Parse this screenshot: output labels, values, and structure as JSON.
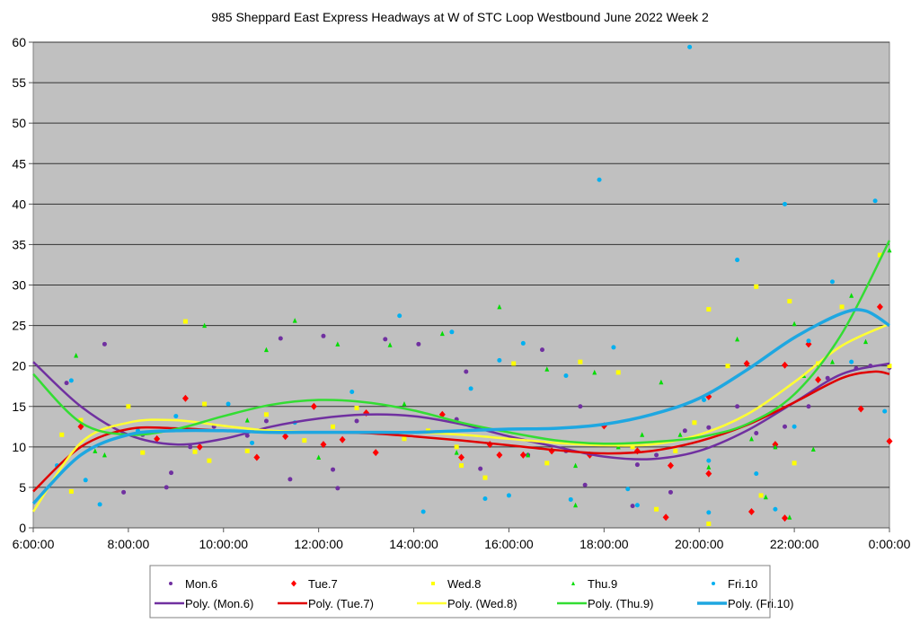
{
  "chart_data": {
    "type": "scatter",
    "title": "985 Sheppard East Express Headways at W of STC Loop Westbound June 2022  Week 2",
    "xlabel": "",
    "ylabel": "",
    "xlim": [
      6,
      24
    ],
    "ylim": [
      0,
      60
    ],
    "x_unit": "hour of day",
    "x_ticks": [
      6,
      8,
      10,
      12,
      14,
      16,
      18,
      20,
      22,
      24
    ],
    "x_tick_labels": [
      "6:00:00",
      "8:00:00",
      "10:00:00",
      "12:00:00",
      "14:00:00",
      "16:00:00",
      "18:00:00",
      "20:00:00",
      "22:00:00",
      "0:00:00"
    ],
    "y_ticks": [
      0,
      5,
      10,
      15,
      20,
      25,
      30,
      35,
      40,
      45,
      50,
      55,
      60
    ],
    "y_tick_labels": [
      "0",
      "5",
      "10",
      "15",
      "20",
      "25",
      "30",
      "35",
      "40",
      "45",
      "50",
      "55",
      "60"
    ],
    "grid": "horizontal",
    "plot_background": "#c0c0c0",
    "legend_position": "bottom",
    "series": [
      {
        "name": "Mon.6",
        "marker": "circle",
        "color": "#7030a0",
        "points": [
          [
            6.7,
            17.9
          ],
          [
            7.5,
            22.7
          ],
          [
            7.9,
            4.4
          ],
          [
            8.3,
            11.5
          ],
          [
            8.8,
            5.0
          ],
          [
            8.9,
            6.8
          ],
          [
            9.3,
            10.0
          ],
          [
            9.8,
            12.5
          ],
          [
            10.5,
            11.4
          ],
          [
            10.9,
            13.2
          ],
          [
            11.4,
            6.0
          ],
          [
            11.2,
            23.4
          ],
          [
            12.1,
            23.7
          ],
          [
            12.3,
            7.2
          ],
          [
            12.4,
            4.9
          ],
          [
            12.8,
            13.2
          ],
          [
            13.4,
            23.3
          ],
          [
            13.8,
            11.0
          ],
          [
            14.1,
            22.7
          ],
          [
            14.9,
            13.4
          ],
          [
            15.1,
            19.3
          ],
          [
            15.4,
            7.3
          ],
          [
            16.4,
            9.0
          ],
          [
            16.7,
            22.0
          ],
          [
            17.2,
            9.5
          ],
          [
            17.5,
            15.0
          ],
          [
            17.6,
            5.3
          ],
          [
            18.6,
            2.7
          ],
          [
            18.7,
            7.8
          ],
          [
            19.1,
            9.0
          ],
          [
            19.4,
            4.4
          ],
          [
            19.7,
            12.0
          ],
          [
            20.2,
            12.4
          ],
          [
            20.8,
            15.0
          ],
          [
            21.2,
            11.7
          ],
          [
            21.6,
            10.0
          ],
          [
            21.8,
            12.5
          ],
          [
            22.3,
            15.0
          ],
          [
            22.7,
            18.5
          ],
          [
            23.3,
            19.7
          ],
          [
            23.6,
            20.0
          ],
          [
            24.0,
            19.8
          ]
        ]
      },
      {
        "name": "Tue.7",
        "marker": "diamond",
        "color": "#ff0000",
        "points": [
          [
            7.0,
            12.5
          ],
          [
            8.6,
            11.0
          ],
          [
            9.2,
            16.0
          ],
          [
            9.5,
            10.0
          ],
          [
            10.7,
            8.7
          ],
          [
            11.3,
            11.3
          ],
          [
            11.9,
            15.0
          ],
          [
            12.1,
            10.3
          ],
          [
            12.5,
            10.9
          ],
          [
            13.0,
            14.2
          ],
          [
            13.2,
            9.3
          ],
          [
            14.6,
            14.0
          ],
          [
            15.0,
            8.7
          ],
          [
            15.6,
            10.3
          ],
          [
            15.8,
            9.0
          ],
          [
            16.3,
            9.0
          ],
          [
            16.9,
            9.5
          ],
          [
            17.7,
            9.0
          ],
          [
            18.0,
            12.6
          ],
          [
            18.7,
            9.5
          ],
          [
            19.3,
            1.3
          ],
          [
            19.4,
            7.7
          ],
          [
            20.2,
            16.2
          ],
          [
            20.2,
            6.7
          ],
          [
            21.0,
            20.3
          ],
          [
            21.1,
            2.0
          ],
          [
            21.6,
            10.3
          ],
          [
            21.8,
            1.2
          ],
          [
            21.8,
            20.1
          ],
          [
            22.3,
            22.7
          ],
          [
            22.5,
            18.3
          ],
          [
            23.4,
            14.7
          ],
          [
            23.8,
            27.3
          ],
          [
            24.0,
            10.7
          ]
        ]
      },
      {
        "name": "Wed.8",
        "marker": "square",
        "color": "#ffff00",
        "points": [
          [
            6.6,
            11.5
          ],
          [
            6.8,
            4.5
          ],
          [
            7.0,
            13.3
          ],
          [
            8.0,
            15.0
          ],
          [
            8.3,
            9.3
          ],
          [
            9.2,
            25.5
          ],
          [
            9.4,
            9.4
          ],
          [
            9.6,
            15.3
          ],
          [
            9.7,
            8.3
          ],
          [
            10.5,
            9.5
          ],
          [
            10.9,
            14.0
          ],
          [
            11.7,
            10.8
          ],
          [
            12.3,
            12.5
          ],
          [
            12.8,
            14.8
          ],
          [
            13.8,
            11.0
          ],
          [
            14.3,
            12.0
          ],
          [
            14.9,
            10.0
          ],
          [
            15.0,
            7.7
          ],
          [
            15.5,
            6.2
          ],
          [
            16.1,
            20.3
          ],
          [
            16.8,
            8.0
          ],
          [
            17.5,
            20.5
          ],
          [
            18.3,
            19.2
          ],
          [
            18.6,
            10.0
          ],
          [
            19.1,
            2.3
          ],
          [
            19.5,
            9.5
          ],
          [
            19.9,
            13.0
          ],
          [
            20.2,
            27.0
          ],
          [
            20.2,
            0.5
          ],
          [
            20.6,
            20.0
          ],
          [
            21.2,
            29.8
          ],
          [
            21.3,
            4.0
          ],
          [
            21.9,
            28.0
          ],
          [
            22.0,
            8.0
          ],
          [
            22.5,
            20.3
          ],
          [
            23.0,
            27.3
          ],
          [
            23.8,
            33.7
          ],
          [
            24.0,
            20.0
          ]
        ]
      },
      {
        "name": "Thu.9",
        "marker": "triangle",
        "color": "#00dd00",
        "points": [
          [
            6.9,
            21.3
          ],
          [
            7.3,
            9.5
          ],
          [
            7.5,
            9.0
          ],
          [
            9.6,
            25.0
          ],
          [
            10.5,
            13.3
          ],
          [
            10.9,
            22.0
          ],
          [
            11.5,
            25.6
          ],
          [
            12.0,
            8.7
          ],
          [
            12.4,
            22.7
          ],
          [
            13.5,
            22.6
          ],
          [
            13.8,
            15.3
          ],
          [
            14.6,
            24.0
          ],
          [
            14.9,
            9.3
          ],
          [
            15.8,
            27.3
          ],
          [
            16.4,
            9.0
          ],
          [
            16.8,
            19.6
          ],
          [
            17.4,
            7.7
          ],
          [
            17.4,
            2.8
          ],
          [
            17.8,
            19.2
          ],
          [
            18.3,
            10.0
          ],
          [
            18.8,
            11.5
          ],
          [
            19.2,
            18.0
          ],
          [
            19.6,
            11.5
          ],
          [
            20.2,
            7.5
          ],
          [
            20.8,
            23.3
          ],
          [
            21.1,
            11.0
          ],
          [
            21.4,
            3.8
          ],
          [
            21.6,
            10.0
          ],
          [
            21.9,
            1.3
          ],
          [
            22.0,
            25.2
          ],
          [
            22.2,
            18.8
          ],
          [
            22.4,
            9.7
          ],
          [
            22.8,
            20.5
          ],
          [
            23.2,
            28.7
          ],
          [
            23.5,
            23.0
          ],
          [
            24.0,
            34.3
          ]
        ]
      },
      {
        "name": "Fri.10",
        "marker": "circle",
        "color": "#00b0f0",
        "points": [
          [
            6.5,
            7.7
          ],
          [
            6.8,
            18.2
          ],
          [
            7.1,
            5.9
          ],
          [
            7.4,
            2.9
          ],
          [
            8.2,
            12.0
          ],
          [
            9.0,
            13.8
          ],
          [
            10.1,
            15.3
          ],
          [
            10.6,
            10.5
          ],
          [
            11.5,
            13.0
          ],
          [
            12.7,
            16.8
          ],
          [
            13.7,
            26.2
          ],
          [
            14.2,
            2.0
          ],
          [
            14.8,
            24.2
          ],
          [
            15.2,
            17.2
          ],
          [
            15.5,
            3.6
          ],
          [
            15.8,
            20.7
          ],
          [
            16.0,
            4.0
          ],
          [
            16.3,
            22.8
          ],
          [
            17.2,
            18.8
          ],
          [
            17.3,
            3.5
          ],
          [
            17.9,
            43.0
          ],
          [
            18.2,
            22.3
          ],
          [
            18.5,
            4.8
          ],
          [
            18.7,
            2.8
          ],
          [
            19.8,
            59.4
          ],
          [
            20.1,
            15.8
          ],
          [
            20.2,
            8.3
          ],
          [
            20.2,
            1.9
          ],
          [
            20.8,
            33.1
          ],
          [
            21.2,
            6.7
          ],
          [
            21.6,
            2.3
          ],
          [
            21.8,
            40.0
          ],
          [
            22.0,
            12.5
          ],
          [
            22.3,
            23.1
          ],
          [
            22.8,
            30.4
          ],
          [
            23.2,
            20.5
          ],
          [
            23.7,
            40.4
          ],
          [
            23.9,
            14.4
          ]
        ]
      }
    ],
    "trendlines": [
      {
        "name": "Poly. (Mon.6)",
        "color": "#7030a0",
        "x": [
          6,
          7,
          8,
          9,
          10,
          11,
          12,
          13,
          14,
          15,
          16,
          17,
          18,
          19,
          20,
          21,
          22,
          23,
          24
        ],
        "y": [
          20.5,
          15,
          11.5,
          10.3,
          11,
          12.5,
          13.5,
          14,
          13.8,
          12.8,
          11.3,
          10,
          8.8,
          8.5,
          9.5,
          12,
          15.5,
          19,
          20.3
        ]
      },
      {
        "name": "Poly. (Tue.7)",
        "color": "#e00000",
        "x": [
          6,
          7,
          8,
          9,
          10,
          11,
          12,
          13,
          14,
          15,
          16,
          17,
          18,
          19,
          20,
          21,
          22,
          23,
          23.67,
          24
        ],
        "y": [
          4.5,
          10,
          12.2,
          12.3,
          12,
          11.8,
          11.8,
          11.7,
          11.3,
          10.8,
          10.2,
          9.6,
          9.2,
          9.5,
          10.7,
          12.7,
          15.5,
          18.5,
          19.3,
          19
        ]
      },
      {
        "name": "Poly. (Wed.8)",
        "color": "#ffff33",
        "x": [
          6,
          7,
          8,
          9,
          10,
          11,
          12,
          13,
          14,
          15,
          16,
          17,
          18,
          19,
          20,
          21,
          22,
          23,
          24
        ],
        "y": [
          2,
          10.5,
          13,
          13.3,
          12.6,
          12,
          11.8,
          11.8,
          11.8,
          11.5,
          11,
          10.5,
          10.2,
          10.3,
          11.5,
          14,
          18,
          22.5,
          25.2
        ]
      },
      {
        "name": "Poly. (Thu.9)",
        "color": "#33dd33",
        "x": [
          6,
          7,
          8,
          9,
          10,
          11,
          12,
          13,
          14,
          15,
          16,
          17,
          18,
          19,
          20,
          21,
          22,
          23,
          24
        ],
        "y": [
          19,
          13,
          11.5,
          12.2,
          13.8,
          15.2,
          15.8,
          15.5,
          14.5,
          13,
          11.8,
          10.8,
          10.4,
          10.6,
          11.2,
          12.8,
          16.5,
          24,
          35.5
        ]
      },
      {
        "name": "Poly. (Fri.10)",
        "color": "#1ea7e1",
        "x": [
          6,
          7,
          8,
          9,
          10,
          11,
          12,
          13,
          14,
          15,
          16,
          17,
          18,
          19,
          20,
          21,
          22,
          23,
          23.5,
          24
        ],
        "y": [
          3,
          9,
          11.5,
          12,
          12,
          11.8,
          11.8,
          11.8,
          11.8,
          12,
          12.2,
          12.3,
          12.8,
          14,
          16,
          19.5,
          23.5,
          26.5,
          26.8,
          25
        ]
      }
    ]
  }
}
